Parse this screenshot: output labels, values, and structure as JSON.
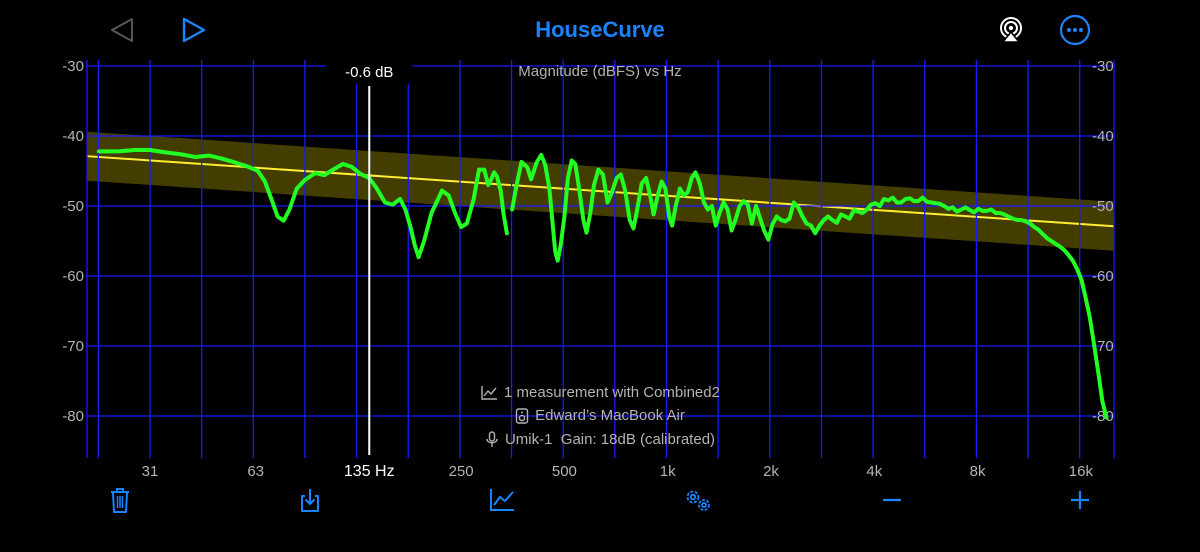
{
  "app": {
    "title": "HouseCurve"
  },
  "colors": {
    "accent": "#1a84ff",
    "grid": "#1a1aff",
    "measurement": "#22ff22",
    "target": "#ffee33",
    "target_band": "#4a4400",
    "cursor": "#ffffff",
    "axis_text": "#b3b3b3"
  },
  "toolbar_top": {
    "back_icon": "play-left-icon",
    "forward_icon": "play-right-icon",
    "airplay_icon": "airplay-icon",
    "more_icon": "ellipsis-circle-icon"
  },
  "toolbar_bottom": {
    "trash_icon": "trash-icon",
    "export_icon": "tray-download-icon",
    "chart_icon": "chart-line-icon",
    "settings_icon": "gears-icon",
    "minus_icon": "minus-icon",
    "plus_icon": "plus-icon"
  },
  "cursor": {
    "readout": "-0.6 dB",
    "freq_label": "135 Hz",
    "freq": 135
  },
  "info": {
    "measurements": "1 measurement with Combined2",
    "device": "Edward’s MacBook Air",
    "mic": "Umik-1  Gain: 18dB (calibrated)"
  },
  "chart_data": {
    "type": "line",
    "title": "Magnitude (dBFS) vs Hz",
    "xscale": "log",
    "ylim": [
      -86,
      -30
    ],
    "y_ticks": [
      -30,
      -40,
      -50,
      -60,
      -70,
      -80
    ],
    "y_tick_labels": [
      "-30",
      "-40",
      "-50",
      "-60",
      "-70",
      "-80"
    ],
    "x_ticks": [
      31,
      63,
      250,
      500,
      1000,
      2000,
      4000,
      8000,
      16000
    ],
    "x_tick_labels": [
      "31",
      "63",
      "250",
      "500",
      "1k",
      "2k",
      "4k",
      "8k",
      "16k"
    ],
    "grid": true,
    "target": {
      "start": [
        22,
        -43
      ],
      "end": [
        21500,
        -53
      ],
      "band_db": 3.5
    },
    "series": [
      {
        "segments": [
          [
            [
              22,
              -42.2
            ],
            [
              25,
              -42.2
            ],
            [
              28,
              -42
            ],
            [
              31,
              -42
            ],
            [
              34,
              -42.3
            ],
            [
              38,
              -42.6
            ],
            [
              42,
              -43
            ],
            [
              46,
              -42.8
            ],
            [
              50,
              -43.2
            ],
            [
              55,
              -43.8
            ],
            [
              60,
              -44.4
            ],
            [
              64,
              -45
            ],
            [
              67,
              -46.5
            ],
            [
              70,
              -49
            ],
            [
              73,
              -51.5
            ],
            [
              76,
              -52.1
            ],
            [
              79,
              -50.5
            ],
            [
              83,
              -47.5
            ],
            [
              88,
              -46.2
            ],
            [
              94,
              -45.3
            ],
            [
              100,
              -45.6
            ],
            [
              106,
              -44.8
            ],
            [
              113,
              -44
            ],
            [
              120,
              -44.4
            ],
            [
              127,
              -45.4
            ],
            [
              135,
              -46
            ],
            [
              142,
              -47.5
            ],
            [
              150,
              -49.5
            ],
            [
              158,
              -49.8
            ],
            [
              166,
              -49
            ],
            [
              172,
              -50.5
            ],
            [
              178,
              -53
            ],
            [
              183,
              -55.5
            ],
            [
              188,
              -57.3
            ],
            [
              195,
              -55
            ],
            [
              205,
              -51
            ],
            [
              220,
              -47.8
            ],
            [
              230,
              -48.5
            ],
            [
              240,
              -51
            ],
            [
              250,
              -53
            ],
            [
              260,
              -52.5
            ],
            [
              272,
              -49
            ],
            [
              282,
              -44.8
            ],
            [
              292,
              -44.8
            ],
            [
              300,
              -47
            ],
            [
              306,
              -46.2
            ],
            [
              312,
              -45.2
            ],
            [
              318,
              -45.8
            ],
            [
              326,
              -47.8
            ],
            [
              332,
              -51
            ],
            [
              340,
              -53.9
            ]
          ],
          [
            [
              352,
              -50.5
            ],
            [
              362,
              -47.2
            ],
            [
              375,
              -43.7
            ],
            [
              390,
              -44.5
            ],
            [
              400,
              -46.2
            ],
            [
              415,
              -43.8
            ],
            [
              428,
              -42.7
            ],
            [
              440,
              -44.2
            ],
            [
              452,
              -47.5
            ],
            [
              462,
              -52.5
            ],
            [
              470,
              -56.5
            ],
            [
              478,
              -57.8
            ],
            [
              488,
              -55.5
            ],
            [
              500,
              -51.5
            ],
            [
              512,
              -46
            ],
            [
              525,
              -43.5
            ],
            [
              538,
              -44
            ],
            [
              552,
              -47.5
            ],
            [
              568,
              -52
            ],
            [
              580,
              -53.8
            ],
            [
              595,
              -51
            ],
            [
              610,
              -47
            ],
            [
              628,
              -44.8
            ],
            [
              648,
              -45.5
            ],
            [
              668,
              -49.5
            ],
            [
              688,
              -48
            ],
            [
              710,
              -46
            ],
            [
              730,
              -45.5
            ],
            [
              752,
              -47.8
            ],
            [
              775,
              -52
            ],
            [
              795,
              -53.2
            ],
            [
              815,
              -50.5
            ],
            [
              840,
              -46.8
            ],
            [
              865,
              -46
            ],
            [
              888,
              -48.4
            ],
            [
              910,
              -51.2
            ],
            [
              935,
              -48.5
            ],
            [
              960,
              -46.5
            ],
            [
              985,
              -47.5
            ],
            [
              1010,
              -51.5
            ],
            [
              1030,
              -52.8
            ],
            [
              1055,
              -50
            ],
            [
              1085,
              -47.5
            ],
            [
              1115,
              -48.5
            ],
            [
              1145,
              -48
            ],
            [
              1175,
              -46
            ],
            [
              1205,
              -45.2
            ],
            [
              1240,
              -46.8
            ],
            [
              1275,
              -49.5
            ],
            [
              1310,
              -50.5
            ],
            [
              1345,
              -50
            ],
            [
              1380,
              -52.8
            ],
            [
              1415,
              -51
            ],
            [
              1455,
              -49.5
            ],
            [
              1495,
              -50.5
            ],
            [
              1535,
              -53.5
            ],
            [
              1575,
              -52
            ],
            [
              1620,
              -50
            ],
            [
              1665,
              -49.3
            ],
            [
              1710,
              -49.8
            ],
            [
              1760,
              -52.5
            ],
            [
              1810,
              -50
            ],
            [
              1860,
              -51.8
            ],
            [
              1910,
              -53.5
            ],
            [
              1965,
              -54.8
            ],
            [
              2020,
              -52.6
            ],
            [
              2080,
              -51.5
            ],
            [
              2140,
              -52
            ],
            [
              2200,
              -52.2
            ],
            [
              2265,
              -51.8
            ],
            [
              2330,
              -49.5
            ],
            [
              2400,
              -50.2
            ],
            [
              2470,
              -51.5
            ],
            [
              2540,
              -52.5
            ],
            [
              2615,
              -52.8
            ],
            [
              2690,
              -53.9
            ],
            [
              2770,
              -52.8
            ],
            [
              2850,
              -52
            ],
            [
              2935,
              -51.5
            ],
            [
              3020,
              -52
            ],
            [
              3110,
              -52.4
            ],
            [
              3200,
              -51.2
            ],
            [
              3295,
              -51.5
            ],
            [
              3390,
              -51.8
            ],
            [
              3490,
              -50.6
            ],
            [
              3590,
              -50.8
            ],
            [
              3695,
              -51
            ],
            [
              3805,
              -50.5
            ],
            [
              3915,
              -49.8
            ],
            [
              4030,
              -49.6
            ],
            [
              4150,
              -50
            ],
            [
              4270,
              -49
            ],
            [
              4395,
              -49.2
            ],
            [
              4525,
              -48.8
            ],
            [
              4655,
              -49.5
            ],
            [
              4790,
              -49.5
            ],
            [
              4930,
              -49
            ],
            [
              5075,
              -48.9
            ],
            [
              5225,
              -49.3
            ],
            [
              5375,
              -49.3
            ],
            [
              5535,
              -48.8
            ],
            [
              5695,
              -49.4
            ],
            [
              5860,
              -49.5
            ],
            [
              6030,
              -49.6
            ],
            [
              6210,
              -49.7
            ],
            [
              6390,
              -50
            ],
            [
              6575,
              -50.4
            ],
            [
              6770,
              -50.2
            ],
            [
              6965,
              -50.8
            ],
            [
              7170,
              -50.5
            ],
            [
              7380,
              -50.2
            ],
            [
              7595,
              -50.6
            ],
            [
              7815,
              -50.9
            ],
            [
              8045,
              -50.4
            ],
            [
              8280,
              -50.7
            ],
            [
              8520,
              -50.7
            ],
            [
              8770,
              -50.5
            ],
            [
              9025,
              -51
            ],
            [
              9290,
              -51
            ],
            [
              9560,
              -51.2
            ],
            [
              9840,
              -51.5
            ],
            [
              10130,
              -51.8
            ],
            [
              10425,
              -52
            ],
            [
              10730,
              -52
            ],
            [
              11040,
              -52.2
            ],
            [
              11365,
              -52.5
            ],
            [
              11695,
              -53
            ],
            [
              12035,
              -53.4
            ],
            [
              12385,
              -54
            ],
            [
              12750,
              -54.6
            ],
            [
              13120,
              -55
            ],
            [
              13500,
              -55.4
            ],
            [
              13900,
              -55.8
            ],
            [
              14300,
              -56.3
            ],
            [
              14720,
              -57
            ],
            [
              15150,
              -57.8
            ],
            [
              15600,
              -59
            ],
            [
              16050,
              -60.5
            ],
            [
              16500,
              -63
            ],
            [
              17000,
              -66
            ],
            [
              17500,
              -70
            ],
            [
              18000,
              -74
            ],
            [
              18500,
              -78
            ],
            [
              19000,
              -80.2
            ]
          ]
        ]
      }
    ]
  }
}
